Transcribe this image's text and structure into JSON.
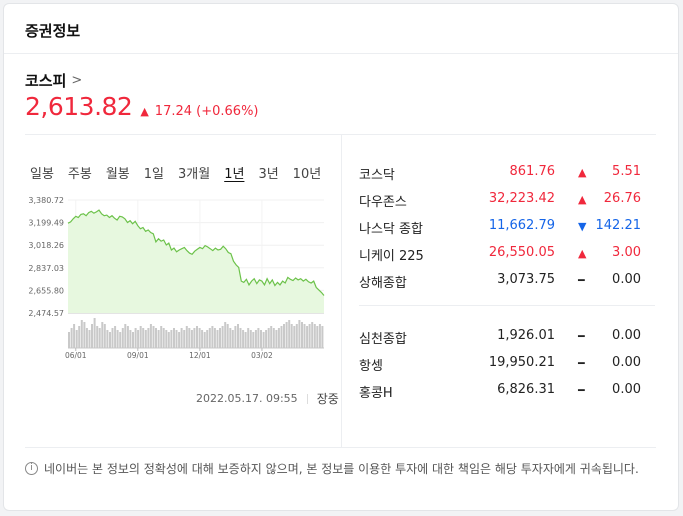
{
  "header": {
    "title": "증권정보"
  },
  "index": {
    "name": "코스피",
    "price": "2,613.82",
    "change": "17.24",
    "change_pct": "(+0.66%)"
  },
  "tabs": [
    "일봉",
    "주봉",
    "월봉",
    "1일",
    "3개월",
    "1년",
    "3년",
    "10년"
  ],
  "active_tab": "1년",
  "chart_data": {
    "type": "area",
    "y_ticks": [
      "3,380.72",
      "3,199.49",
      "3,018.26",
      "2,837.03",
      "2,655.80",
      "2,474.57"
    ],
    "ylim": [
      2474.57,
      3380.72
    ],
    "x_ticks": [
      "06/01",
      "09/01",
      "12/01",
      "03/02"
    ],
    "line_color": "#6cc24a",
    "fill_color": "#e7f8df",
    "series": [
      3195,
      3205,
      3230,
      3250,
      3240,
      3265,
      3270,
      3255,
      3280,
      3290,
      3275,
      3285,
      3300,
      3270,
      3255,
      3260,
      3240,
      3255,
      3235,
      3220,
      3250,
      3245,
      3230,
      3200,
      3215,
      3190,
      3210,
      3175,
      3150,
      3160,
      3130,
      3140,
      3120,
      3110,
      3045,
      3070,
      3050,
      3060,
      3020,
      3035,
      2980,
      2995,
      2965,
      2980,
      2990,
      3000,
      2975,
      2955,
      2945,
      2970,
      2985,
      3000,
      2990,
      3015,
      3005,
      2990,
      2975,
      2995,
      2980,
      2985,
      3010,
      2990,
      2960,
      2950,
      2890,
      2860,
      2840,
      2730,
      2720,
      2745,
      2700,
      2730,
      2750,
      2710,
      2740,
      2730,
      2700,
      2750,
      2710,
      2740,
      2695,
      2720,
      2700,
      2730,
      2715,
      2760,
      2745,
      2735,
      2755,
      2740,
      2750,
      2730,
      2745,
      2725,
      2715,
      2730,
      2680,
      2660,
      2640,
      2615
    ],
    "volume": [
      8,
      10,
      12,
      9,
      11,
      14,
      13,
      10,
      9,
      12,
      15,
      11,
      10,
      13,
      12,
      9,
      8,
      10,
      11,
      9,
      8,
      10,
      12,
      11,
      9,
      8,
      10,
      9,
      11,
      10,
      9,
      10,
      12,
      11,
      10,
      9,
      11,
      10,
      9,
      8,
      9,
      10,
      9,
      8,
      10,
      9,
      11,
      10,
      9,
      10,
      11,
      10,
      9,
      8,
      9,
      10,
      11,
      10,
      9,
      10,
      11,
      13,
      12,
      10,
      9,
      11,
      12,
      10,
      9,
      8,
      10,
      9,
      8,
      9,
      10,
      9,
      8,
      9,
      10,
      11,
      10,
      9,
      10,
      11,
      12,
      13,
      14,
      12,
      11,
      12,
      14,
      13,
      12,
      11,
      12,
      13,
      12,
      11,
      12,
      11
    ]
  },
  "timestamp": "2022.05.17. 09:55",
  "market_status": "장중",
  "markets": [
    {
      "name": "코스닥",
      "value": "861.76",
      "change": "5.51",
      "dir": "up",
      "color": "#f0283c"
    },
    {
      "name": "다우존스",
      "value": "32,223.42",
      "change": "26.76",
      "dir": "up",
      "color": "#f0283c"
    },
    {
      "name": "나스닥 종합",
      "value": "11,662.79",
      "change": "142.21",
      "dir": "down",
      "color": "#1565e8"
    },
    {
      "name": "니케이 225",
      "value": "26,550.05",
      "change": "3.00",
      "dir": "up",
      "color": "#f0283c"
    },
    {
      "name": "상해종합",
      "value": "3,073.75",
      "change": "0.00",
      "dir": "flat",
      "color": "#222222"
    }
  ],
  "markets2": [
    {
      "name": "심천종합",
      "value": "1,926.01",
      "change": "0.00",
      "dir": "flat",
      "color": "#222222"
    },
    {
      "name": "항셍",
      "value": "19,950.21",
      "change": "0.00",
      "dir": "flat",
      "color": "#222222"
    },
    {
      "name": "홍콩H",
      "value": "6,826.31",
      "change": "0.00",
      "dir": "flat",
      "color": "#222222"
    }
  ],
  "notice": "네이버는 본 정보의 정확성에 대해 보증하지 않으며, 본 정보를 이용한 투자에 대한 책임은 해당 투자자에게 귀속됩니다."
}
